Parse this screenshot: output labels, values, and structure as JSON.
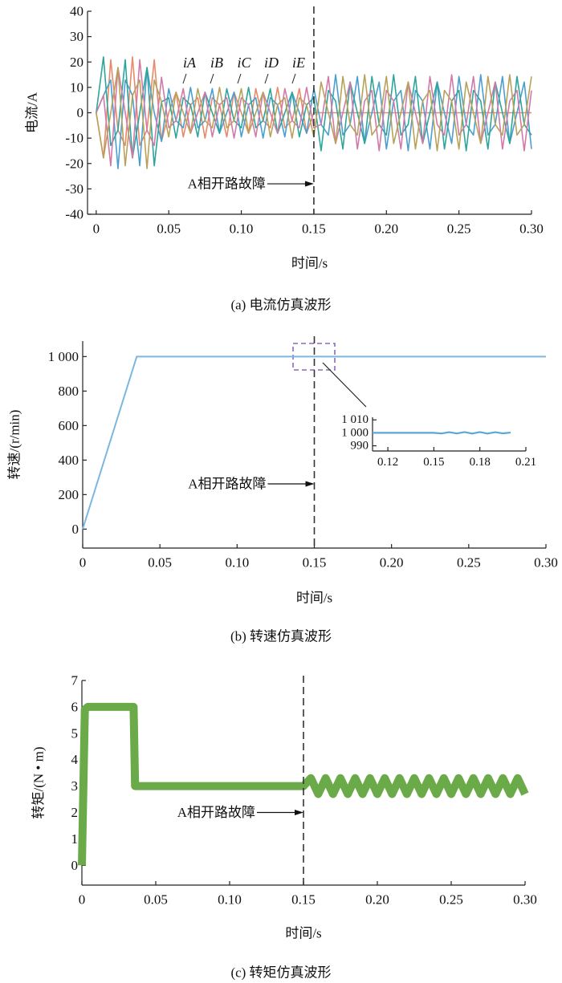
{
  "chart_data": [
    {
      "type": "line",
      "ylabel": "电流/A",
      "xlabel": "时间/s",
      "caption": "(a) 电流仿真波形",
      "xlim": [
        -0.006,
        0.3
      ],
      "ylim": [
        -40,
        40
      ],
      "xticks": [
        0,
        0.05,
        {
          "value": 0.1,
          "label": "0.10"
        },
        0.15,
        {
          "value": 0.2,
          "label": "0.20"
        },
        0.25,
        {
          "value": 0.3,
          "label": "0.30"
        }
      ],
      "yticks": [
        -40,
        -30,
        -20,
        -10,
        0,
        10,
        20,
        30,
        40
      ],
      "vline": 0.15,
      "annotation": {
        "text": "A相开路故障",
        "x": 0.15,
        "y": -28
      },
      "x": [
        0,
        0.005,
        0.01,
        0.015,
        0.02,
        0.025,
        0.03,
        0.035,
        0.04,
        0.045,
        0.05,
        0.055,
        0.06,
        0.065,
        0.07,
        0.075,
        0.08,
        0.085,
        0.09,
        0.095,
        0.1,
        0.105,
        0.11,
        0.115,
        0.12,
        0.125,
        0.13,
        0.135,
        0.14,
        0.145,
        0.15,
        0.155,
        0.16,
        0.165,
        0.17,
        0.175,
        0.18,
        0.185,
        0.19,
        0.195,
        0.2,
        0.205,
        0.21,
        0.215,
        0.22,
        0.225,
        0.23,
        0.235,
        0.24,
        0.245,
        0.25,
        0.255,
        0.26,
        0.265,
        0.27,
        0.275,
        0.28,
        0.285,
        0.29,
        0.295,
        0.3
      ],
      "series": [
        {
          "name": "iA",
          "color": "#e8896a",
          "values": [
            0,
            -17.8,
            20.9,
            -6.8,
            -12.9,
            22,
            -12.9,
            -6.8,
            20.9,
            -11.3,
            0,
            8.1,
            -9.5,
            3.1,
            5.9,
            -10,
            5.9,
            3.1,
            -9.5,
            8.1,
            0,
            -8.1,
            9.5,
            -3.1,
            -5.9,
            10,
            -5.9,
            -3.1,
            9.5,
            -8.1,
            0,
            0,
            0,
            0,
            0,
            0,
            0,
            0,
            0,
            0,
            0,
            0,
            0,
            0,
            0,
            0,
            0,
            0,
            0,
            0,
            0,
            0,
            0,
            0,
            0,
            0,
            0,
            0,
            0,
            0,
            0
          ]
        },
        {
          "name": "iB",
          "color": "#4a9fd0",
          "values": [
            0,
            6.8,
            12.9,
            -22,
            12.9,
            6.8,
            -20.9,
            17.8,
            0,
            -11.3,
            9.5,
            -3.1,
            -5.9,
            10,
            -5.9,
            -3.1,
            9.5,
            -8.1,
            0,
            8.1,
            -9.5,
            3.1,
            5.9,
            -10,
            5.9,
            3.1,
            -9.5,
            8.1,
            0,
            -8.1,
            9.5,
            -4.6,
            -8.8,
            15,
            -8.8,
            -4.6,
            14.3,
            -12.1,
            0,
            12.1,
            -14.3,
            4.6,
            8.8,
            -15,
            8.8,
            4.6,
            -14.3,
            12.1,
            0,
            -12.1,
            14.3,
            -4.6,
            -8.8,
            15,
            -8.8,
            -4.6,
            14.3,
            -12.1,
            0,
            12.1,
            -14.3
          ]
        },
        {
          "name": "iC",
          "color": "#2ea59a",
          "values": [
            0,
            22,
            -12.9,
            -6.8,
            20.9,
            -17.8,
            0,
            17.8,
            -20.9,
            4.3,
            5.9,
            -10,
            5.9,
            3.1,
            -9.5,
            8.1,
            0,
            -8.1,
            9.5,
            -3.1,
            -5.9,
            10,
            -5.9,
            -3.1,
            9.5,
            -8.1,
            0,
            8.1,
            -9.5,
            3.1,
            5.9,
            -15,
            8.8,
            4.6,
            -14.3,
            12.1,
            0,
            -12.1,
            14.3,
            -4.6,
            -8.8,
            15,
            -8.8,
            -4.6,
            14.3,
            -12.1,
            0,
            12.1,
            -14.3,
            4.6,
            8.8,
            -15,
            8.8,
            4.6,
            -14.3,
            12.1,
            0,
            -12.1,
            14.3,
            -4.6,
            -8.8
          ]
        },
        {
          "name": "iD",
          "color": "#d07aa8",
          "values": [
            0,
            6.8,
            -20.9,
            17.8,
            0,
            -17.8,
            20.9,
            -6.8,
            -12.9,
            14,
            -5.9,
            -3.1,
            9.5,
            -8.1,
            0,
            8.1,
            -9.5,
            3.1,
            5.9,
            -10,
            5.9,
            3.1,
            -9.5,
            8.1,
            0,
            -8.1,
            9.5,
            -3.1,
            -5.9,
            10,
            -5.9,
            -4.6,
            14.3,
            -12.1,
            0,
            12.1,
            -14.3,
            4.6,
            8.8,
            -15,
            8.8,
            4.6,
            -14.3,
            12.1,
            0,
            -12.1,
            14.3,
            -4.6,
            -8.8,
            15,
            -8.8,
            -4.6,
            14.3,
            -12.1,
            0,
            12.1,
            -14.3,
            4.6,
            8.8,
            -15,
            8.8
          ]
        },
        {
          "name": "iE",
          "color": "#b8a25a",
          "values": [
            0,
            -17.8,
            0,
            17.8,
            -20.9,
            6.8,
            12.9,
            -22,
            12.9,
            4.3,
            -9.5,
            8.1,
            0,
            -8.1,
            9.5,
            -3.1,
            -5.9,
            10,
            -5.9,
            -3.1,
            9.5,
            -8.1,
            0,
            8.1,
            -9.5,
            3.1,
            5.9,
            -10,
            5.9,
            3.1,
            -9.5,
            12.1,
            0,
            -12.1,
            14.3,
            -4.6,
            -8.8,
            15,
            -8.8,
            -4.6,
            14.3,
            -12.1,
            0,
            12.1,
            -14.3,
            4.6,
            8.8,
            -15,
            8.8,
            4.6,
            -14.3,
            12.1,
            0,
            -12.1,
            14.3,
            -4.6,
            -8.8,
            15,
            -8.8,
            -4.6,
            14.3
          ]
        }
      ]
    },
    {
      "type": "line",
      "ylabel": "转速/(r/min)",
      "xlabel": "时间/s",
      "caption": "(b) 转速仿真波形",
      "xlim": [
        0,
        0.3
      ],
      "ylim": [
        -110,
        1090
      ],
      "xticks": [
        0,
        0.05,
        {
          "value": 0.1,
          "label": "0.10"
        },
        0.15,
        {
          "value": 0.2,
          "label": "0.20"
        },
        0.25,
        {
          "value": 0.3,
          "label": "0.30"
        }
      ],
      "yticks": [
        0,
        200,
        400,
        600,
        800,
        {
          "value": 1000,
          "label": "1 000"
        }
      ],
      "vline": 0.15,
      "annotation": {
        "text": "A相开路故障",
        "x": 0.15,
        "y": 262
      },
      "color": "#7ab8e0",
      "x": [
        0,
        0.035,
        0.15,
        0.3
      ],
      "values": [
        0,
        1000,
        1000,
        1000
      ],
      "inset": {
        "type": "line",
        "xlim": [
          0.11,
          0.21
        ],
        "ylim": [
          986,
          1012
        ],
        "xticks": [
          0.12,
          0.15,
          0.18,
          0.21
        ],
        "yticks": [
          990,
          {
            "value": 1000,
            "label": "1 000"
          },
          {
            "value": 1010,
            "label": "1 010"
          }
        ],
        "color": "#5aa6d6",
        "x": [
          0.11,
          0.15,
          0.155,
          0.16,
          0.165,
          0.17,
          0.175,
          0.18,
          0.185,
          0.19,
          0.195,
          0.2
        ],
        "values": [
          1000,
          1000,
          999.5,
          1000.5,
          999.5,
          1000.6,
          999.4,
          1000.6,
          999.4,
          1000.5,
          999.6,
          1000.2
        ]
      }
    },
    {
      "type": "line",
      "ylabel": "转矩/(N • m)",
      "xlabel": "时间/s",
      "caption": "(c) 转矩仿真波形",
      "xlim": [
        0,
        0.3
      ],
      "ylim": [
        -0.75,
        7
      ],
      "xticks": [
        0,
        0.05,
        {
          "value": 0.1,
          "label": "0.10"
        },
        0.15,
        {
          "value": 0.2,
          "label": "0.20"
        },
        0.25,
        {
          "value": 0.3,
          "label": "0.30"
        }
      ],
      "yticks": [
        0,
        1,
        2,
        3,
        4,
        5,
        6,
        7
      ],
      "vline": 0.15,
      "annotation": {
        "text": "A相开路故障",
        "x": 0.15,
        "y": 2
      },
      "color": "#6aaa48",
      "x": [
        0,
        0.002,
        0.004,
        0.01,
        0.02,
        0.03,
        0.035,
        0.036,
        0.05,
        0.1,
        0.15,
        0.155,
        0.16,
        0.165,
        0.17,
        0.175,
        0.18,
        0.185,
        0.19,
        0.195,
        0.2,
        0.205,
        0.21,
        0.215,
        0.22,
        0.225,
        0.23,
        0.235,
        0.24,
        0.245,
        0.25,
        0.255,
        0.26,
        0.265,
        0.27,
        0.275,
        0.28,
        0.285,
        0.29,
        0.295,
        0.3
      ],
      "values": [
        0,
        5.9,
        6,
        6,
        6,
        6,
        6,
        3,
        3,
        3,
        3,
        3.3,
        2.7,
        3.3,
        2.7,
        3.3,
        2.7,
        3.3,
        2.7,
        3.3,
        2.7,
        3.3,
        2.7,
        3.3,
        2.7,
        3.3,
        2.7,
        3.3,
        2.7,
        3.3,
        2.7,
        3.3,
        2.7,
        3.3,
        2.7,
        3.3,
        2.7,
        3.3,
        2.7,
        3.3,
        2.7
      ]
    }
  ]
}
